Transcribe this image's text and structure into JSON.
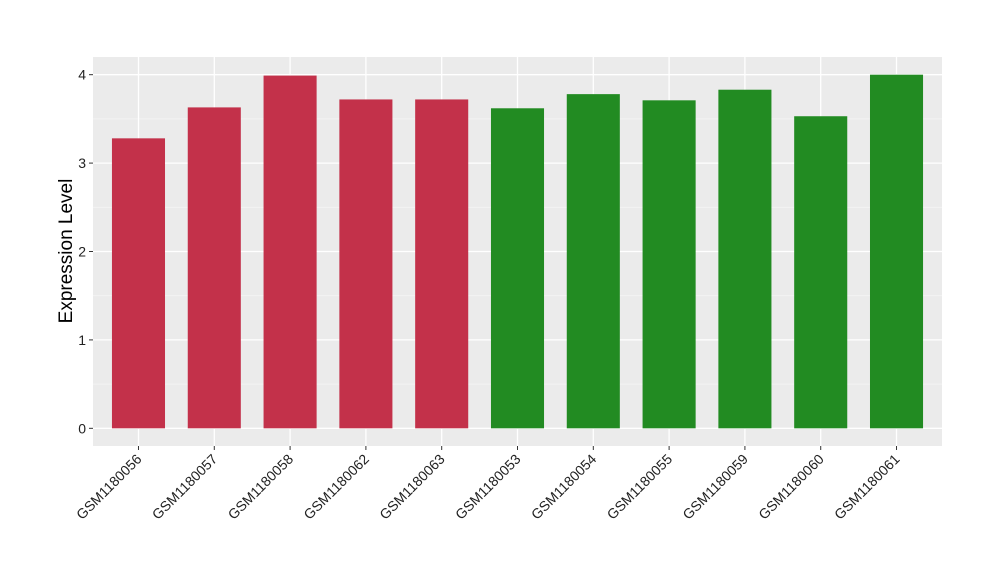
{
  "chart_data": {
    "type": "bar",
    "title": "",
    "xlabel": "",
    "ylabel": "Expression Level",
    "ylim": [
      -0.2,
      4.2
    ],
    "yticks": [
      0,
      1,
      2,
      3,
      4
    ],
    "grid": true,
    "categories": [
      "GSM1180056",
      "GSM1180057",
      "GSM1180058",
      "GSM1180062",
      "GSM1180063",
      "GSM1180053",
      "GSM1180054",
      "GSM1180055",
      "GSM1180059",
      "GSM1180060",
      "GSM1180061"
    ],
    "values": [
      3.28,
      3.63,
      3.99,
      3.72,
      3.72,
      3.62,
      3.78,
      3.71,
      3.83,
      3.53,
      4.0
    ],
    "bar_colors": [
      "#c3314a",
      "#c3314a",
      "#c3314a",
      "#c3314a",
      "#c3314a",
      "#228b22",
      "#228b22",
      "#228b22",
      "#228b22",
      "#228b22",
      "#228b22"
    ],
    "panel_background": "#ebebeb"
  }
}
